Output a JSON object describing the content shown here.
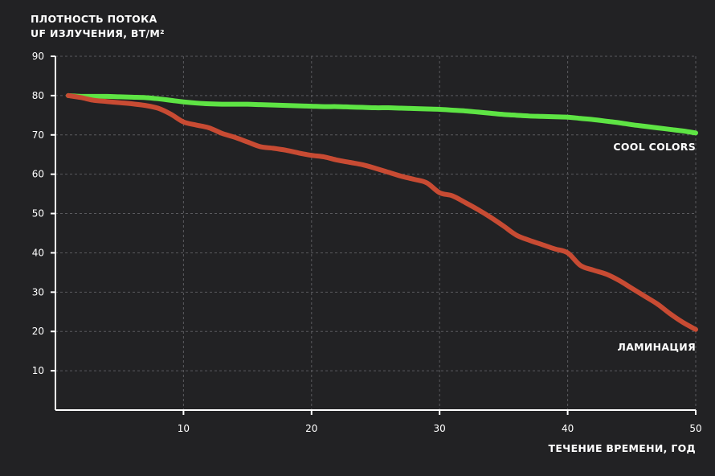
{
  "chart_data": {
    "type": "line",
    "title": "",
    "ylabel_lines": [
      "ПЛОТНОСТЬ ПОТОКА",
      "UF ИЗЛУЧЕНИЯ, ВТ/М²"
    ],
    "xlabel": "ТЕЧЕНИЕ ВРЕМЕНИ, ГОД",
    "xlim": [
      0,
      50
    ],
    "ylim": [
      0,
      90
    ],
    "x_ticks": [
      10,
      20,
      30,
      40,
      50
    ],
    "y_ticks": [
      10,
      20,
      30,
      40,
      50,
      60,
      70,
      80,
      90
    ],
    "grid": true,
    "x": [
      1,
      2,
      3,
      4,
      5,
      6,
      7,
      8,
      9,
      10,
      11,
      12,
      13,
      14,
      15,
      16,
      17,
      18,
      19,
      20,
      21,
      22,
      23,
      24,
      25,
      26,
      27,
      28,
      29,
      30,
      31,
      32,
      33,
      34,
      35,
      36,
      37,
      38,
      39,
      40,
      41,
      42,
      43,
      44,
      45,
      46,
      47,
      48,
      49,
      50
    ],
    "series": [
      {
        "name": "COOL COLORS",
        "color": "#5ee444",
        "values": [
          80,
          79.8,
          79.8,
          79.8,
          79.7,
          79.6,
          79.5,
          79.2,
          78.8,
          78.4,
          78.1,
          77.9,
          77.8,
          77.8,
          77.8,
          77.7,
          77.6,
          77.5,
          77.4,
          77.3,
          77.2,
          77.2,
          77.1,
          77.0,
          76.9,
          76.9,
          76.8,
          76.7,
          76.6,
          76.5,
          76.3,
          76.1,
          75.8,
          75.5,
          75.2,
          75.0,
          74.8,
          74.7,
          74.6,
          74.5,
          74.2,
          73.9,
          73.5,
          73.1,
          72.6,
          72.2,
          71.8,
          71.4,
          71.0,
          70.5
        ]
      },
      {
        "name": "ЛАМИНАЦИЯ",
        "color": "#c84b33",
        "values": [
          80,
          79.5,
          78.8,
          78.5,
          78.2,
          77.9,
          77.5,
          76.8,
          75.3,
          73.3,
          72.5,
          71.8,
          70.4,
          69.4,
          68.2,
          67.0,
          66.6,
          66.1,
          65.4,
          64.8,
          64.4,
          63.6,
          63.0,
          62.4,
          61.5,
          60.5,
          59.5,
          58.7,
          57.8,
          55.3,
          54.5,
          52.8,
          51.0,
          49.0,
          46.8,
          44.5,
          43.2,
          42.1,
          41.0,
          40.0,
          36.8,
          35.6,
          34.6,
          33.0,
          31.0,
          29.0,
          27.0,
          24.5,
          22.3,
          20.5
        ]
      }
    ]
  }
}
